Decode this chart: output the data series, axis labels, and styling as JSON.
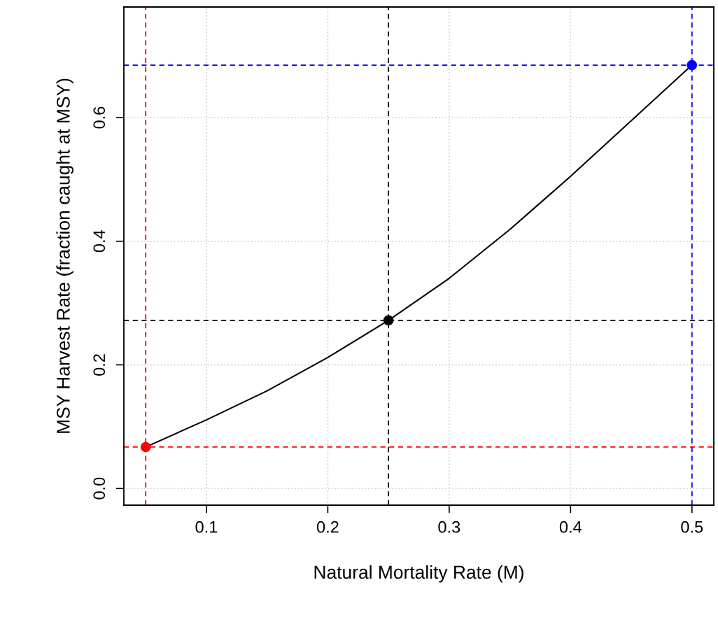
{
  "chart_data": {
    "type": "scatter",
    "xlabel": "Natural Mortality Rate (M)",
    "ylabel": "MSY Harvest Rate (fraction caught at MSY)",
    "series": [
      {
        "type": "line",
        "color": "#000000",
        "x": [
          0.05,
          0.1,
          0.15,
          0.2,
          0.25,
          0.3,
          0.35,
          0.4,
          0.45,
          0.5
        ],
        "values": [
          0.067,
          0.111,
          0.158,
          0.212,
          0.272,
          0.34,
          0.419,
          0.505,
          0.595,
          0.685
        ]
      },
      {
        "marker": "circle",
        "colors": [
          "#ff0000",
          "#000000",
          "#0000ff"
        ],
        "x": [
          0.05,
          0.25,
          0.5
        ],
        "values": [
          0.067,
          0.272,
          0.685
        ]
      }
    ],
    "ref_lines": [
      {
        "axis": "x",
        "value": 0.05,
        "color": "#ff0000",
        "line_style": "dashed"
      },
      {
        "axis": "y",
        "value": 0.067,
        "color": "#ff0000",
        "line_style": "dashed"
      },
      {
        "axis": "x",
        "value": 0.25,
        "color": "#000000",
        "line_style": "dashed"
      },
      {
        "axis": "y",
        "value": 0.272,
        "color": "#000000",
        "line_style": "dashed"
      },
      {
        "axis": "x",
        "value": 0.5,
        "color": "#0000ff",
        "line_style": "dashed"
      },
      {
        "axis": "y",
        "value": 0.685,
        "color": "#0000ff",
        "line_style": "dashed"
      }
    ],
    "xlim": [
      0.032,
      0.518
    ],
    "xticks": [
      0.1,
      0.2,
      0.3,
      0.4,
      0.5
    ],
    "ylim": [
      -0.027,
      0.779
    ],
    "yticks": [
      {
        "value": 0,
        "label": "0.0"
      },
      0.2,
      0.4,
      0.6
    ],
    "grid": true,
    "line_style": "solid"
  }
}
